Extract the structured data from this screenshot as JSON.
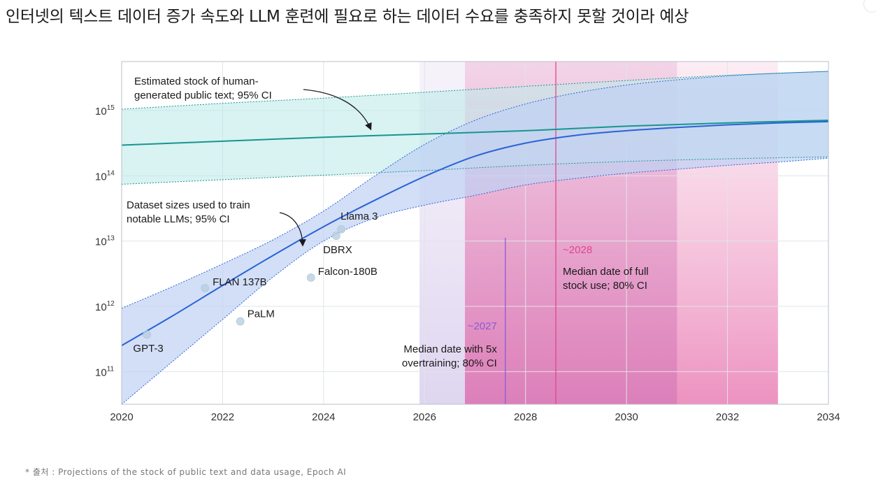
{
  "page": {
    "headline": "인터넷의 텍스트 데이터 증가 속도와 LLM 훈련에 필요로 하는 데이터 수요를 충족하지 못할 것이라 예상",
    "footnote": "* 출처 : Projections of the stock of public text and data usage, Epoch AI"
  },
  "colors": {
    "stock_line": "#17968f",
    "stock_band": "#bfe9e9",
    "dataset_line": "#2a62d6",
    "dataset_band": "#bfd2f3",
    "overtrain_marker": "#8a5ad8",
    "fullstock_marker": "#e0468c",
    "pink_band": "#ec9cc6",
    "lavender_band": "#e4dcf2",
    "points": "#b8cfe0"
  },
  "chart_data": {
    "type": "line",
    "x_axis": {
      "min": 2020,
      "max": 2034,
      "ticks": [
        2020,
        2022,
        2024,
        2026,
        2028,
        2030,
        2032,
        2034
      ]
    },
    "y_axis": {
      "scale": "log10",
      "min_exp": 10.5,
      "max_exp": 15.75,
      "ticks": [
        {
          "exp": 11,
          "base": "10",
          "sup": "11"
        },
        {
          "exp": 12,
          "base": "10",
          "sup": "12"
        },
        {
          "exp": 13,
          "base": "10",
          "sup": "13"
        },
        {
          "exp": 14,
          "base": "10",
          "sup": "14"
        },
        {
          "exp": 15,
          "base": "10",
          "sup": "15"
        }
      ]
    },
    "series": [
      {
        "name": "Estimated stock of human-generated public text",
        "x": [
          2020,
          2022,
          2024,
          2026,
          2028,
          2030,
          2032,
          2034
        ],
        "log10": [
          14.47,
          14.53,
          14.59,
          14.64,
          14.69,
          14.76,
          14.81,
          14.85
        ],
        "ci_low": [
          13.87,
          13.94,
          14.01,
          14.08,
          14.16,
          14.22,
          14.26,
          14.29
        ],
        "ci_high": [
          15.02,
          15.11,
          15.19,
          15.28,
          15.37,
          15.46,
          15.54,
          15.6
        ]
      },
      {
        "name": "Dataset sizes used to train notable LLMs",
        "x": [
          2020,
          2021,
          2022,
          2023,
          2024,
          2025,
          2026,
          2027,
          2028,
          2029,
          2030,
          2031,
          2032,
          2033,
          2034
        ],
        "log10": [
          11.4,
          11.85,
          12.32,
          12.78,
          13.22,
          13.62,
          13.99,
          14.3,
          14.5,
          14.62,
          14.69,
          14.74,
          14.78,
          14.81,
          14.83
        ],
        "ci_low": [
          10.5,
          11.15,
          11.8,
          12.45,
          13.0,
          13.35,
          13.55,
          13.7,
          13.86,
          13.96,
          14.04,
          14.1,
          14.16,
          14.21,
          14.27
        ],
        "ci_high": [
          11.97,
          12.3,
          12.65,
          13.02,
          13.46,
          13.99,
          14.48,
          14.85,
          15.1,
          15.27,
          15.39,
          15.47,
          15.53,
          15.57,
          15.6
        ]
      }
    ],
    "points": [
      {
        "label": "GPT-3",
        "x": 2020.5,
        "log10": 11.57,
        "label_pos": "below"
      },
      {
        "label": "FLAN 137B",
        "x": 2021.65,
        "log10": 12.28,
        "label_pos": "right"
      },
      {
        "label": "PaLM",
        "x": 2022.35,
        "log10": 11.77,
        "label_pos": "right"
      },
      {
        "label": "Falcon-180B",
        "x": 2023.75,
        "log10": 12.44,
        "label_pos": "right"
      },
      {
        "label": "DBRX",
        "x": 2024.25,
        "log10": 13.08,
        "label_pos": "below"
      },
      {
        "label": "Llama 3",
        "x": 2024.35,
        "log10": 13.18,
        "label_pos": "above"
      }
    ],
    "regions": [
      {
        "name": "5x overtraining 80% CI",
        "x_start": 2025.9,
        "x_end": 2031.0
      },
      {
        "name": "full stock use 80% CI",
        "x_start": 2026.8,
        "x_end": 2033.0
      }
    ],
    "markers": [
      {
        "label": "~2027",
        "x": 2027.6,
        "caption": [
          "Median date with 5x",
          "overtraining; 80% CI"
        ]
      },
      {
        "label": "~2028",
        "x": 2028.6,
        "caption": [
          "Median date of full",
          "stock use; 80% CI"
        ]
      }
    ],
    "annotations": [
      {
        "lines": [
          "Estimated stock of human-",
          "generated public text; 95% CI"
        ]
      },
      {
        "lines": [
          "Dataset sizes used to train",
          "notable LLMs; 95% CI"
        ]
      }
    ]
  }
}
